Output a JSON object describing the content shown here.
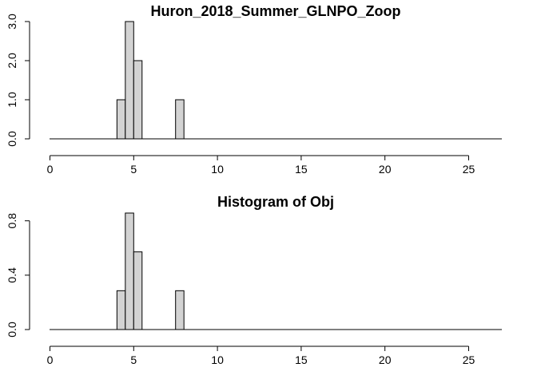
{
  "chart_data": [
    {
      "type": "bar",
      "subtype": "histogram",
      "title": "Huron_2018_Summer_GLNPO_Zoop",
      "xlabel": "",
      "ylabel": "",
      "bin_width": 0.5,
      "bins": [
        {
          "x0": 4.0,
          "x1": 4.5,
          "y": 1
        },
        {
          "x0": 4.5,
          "x1": 5.0,
          "y": 3
        },
        {
          "x0": 5.0,
          "x1": 5.5,
          "y": 2
        },
        {
          "x0": 7.5,
          "x1": 8.0,
          "y": 1
        }
      ],
      "xlim": [
        0,
        27
      ],
      "ylim": [
        0,
        3
      ],
      "x_ticks": [
        0,
        5,
        10,
        15,
        20,
        25
      ],
      "x_tick_labels": [
        "0",
        "5",
        "10",
        "15",
        "20",
        "25"
      ],
      "y_ticks": [
        0,
        1,
        2,
        3
      ],
      "y_tick_labels": [
        "0.0",
        "1.0",
        "2.0",
        "3.0"
      ],
      "grid": false,
      "colors": {
        "bar_fill": "#d3d3d3",
        "bar_stroke": "#000000"
      }
    },
    {
      "type": "bar",
      "subtype": "histogram",
      "title": "Histogram of Obj",
      "xlabel": "",
      "ylabel": "",
      "bin_width": 0.5,
      "bins": [
        {
          "x0": 4.0,
          "x1": 4.5,
          "y": 0.2857
        },
        {
          "x0": 4.5,
          "x1": 5.0,
          "y": 0.8571
        },
        {
          "x0": 5.0,
          "x1": 5.5,
          "y": 0.5714
        },
        {
          "x0": 7.5,
          "x1": 8.0,
          "y": 0.2857
        }
      ],
      "xlim": [
        0,
        27
      ],
      "ylim": [
        0,
        0.8571
      ],
      "x_ticks": [
        0,
        5,
        10,
        15,
        20,
        25
      ],
      "x_tick_labels": [
        "0",
        "5",
        "10",
        "15",
        "20",
        "25"
      ],
      "y_ticks": [
        0,
        0.4,
        0.8
      ],
      "y_tick_labels": [
        "0.0",
        "0.4",
        "0.8"
      ],
      "grid": false,
      "colors": {
        "bar_fill": "#d3d3d3",
        "bar_stroke": "#000000"
      }
    }
  ]
}
